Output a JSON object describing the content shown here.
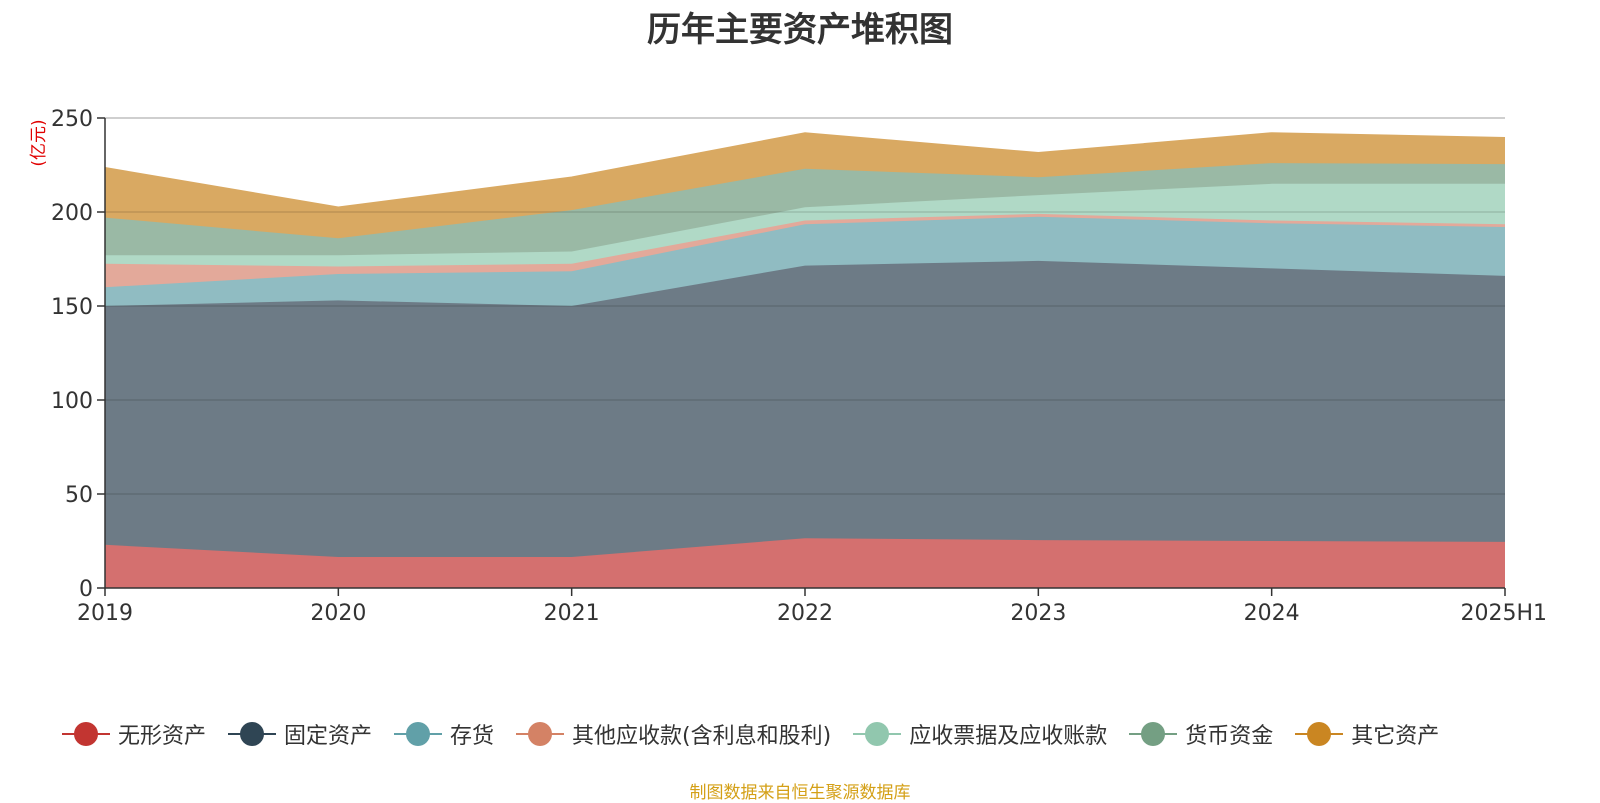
{
  "page": {
    "source_note": "制图数据来自恒生聚源数据库"
  },
  "chart_data": {
    "type": "area",
    "stacked": true,
    "title": "历年主要资产堆积图",
    "unit_label": "(亿元)",
    "categories": [
      "2019",
      "2020",
      "2021",
      "2022",
      "2023",
      "2024",
      "2025H1"
    ],
    "ylim": [
      0,
      250
    ],
    "yticks": [
      0,
      50,
      100,
      150,
      200,
      250
    ],
    "grid": true,
    "legend_position": "bottom",
    "series": [
      {
        "name": "无形资产",
        "color": "#c23531",
        "area_color": "#d4706f",
        "values": [
          23,
          16.5,
          16.5,
          26.5,
          25.5,
          25,
          24.5
        ]
      },
      {
        "name": "固定资产",
        "color": "#2f4554",
        "area_color": "#6d7b86",
        "values": [
          127,
          136.5,
          133.5,
          145,
          148.5,
          145,
          141.5
        ]
      },
      {
        "name": "存货",
        "color": "#61a0a8",
        "area_color": "#90bcc2",
        "values": [
          10,
          14,
          18.5,
          22,
          23.5,
          24,
          26
        ]
      },
      {
        "name": "其他应收款(含利息和股利)",
        "color": "#d48265",
        "area_color": "#e3a99a",
        "values": [
          12.5,
          4,
          4,
          2,
          1.5,
          1.5,
          1.5
        ]
      },
      {
        "name": "应收票据及应收账款",
        "color": "#91c7ae",
        "area_color": "#b0d9c6",
        "values": [
          4.5,
          6,
          6.5,
          7,
          10,
          19.5,
          21.5
        ]
      },
      {
        "name": "货币资金",
        "color": "#749f83",
        "area_color": "#9ab9a5",
        "values": [
          20,
          9,
          22,
          20.5,
          9.5,
          11,
          10.5
        ]
      },
      {
        "name": "其它资产",
        "color": "#ca8622",
        "area_color": "#d9a962",
        "values": [
          26.5,
          16.5,
          17.5,
          19,
          13,
          16,
          14
        ]
      }
    ]
  }
}
